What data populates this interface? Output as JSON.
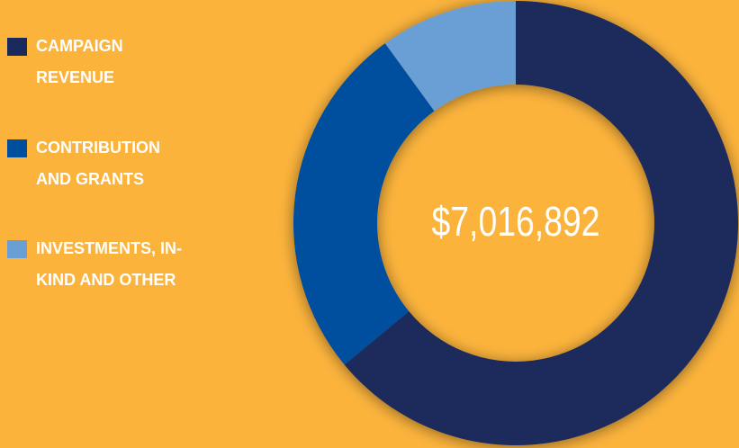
{
  "chart_data": {
    "type": "donut",
    "center_label": "$7,016,892",
    "series": [
      {
        "name": "CAMPAIGN REVENUE",
        "color": "#1b2a5c",
        "value": 64
      },
      {
        "name": "CONTRIBUTION AND GRANTS",
        "color": "#004f9e",
        "value": 26
      },
      {
        "name": "INVESTMENTS, IN-KIND AND OTHER",
        "color": "#6a9fd6",
        "value": 10
      }
    ]
  }
}
